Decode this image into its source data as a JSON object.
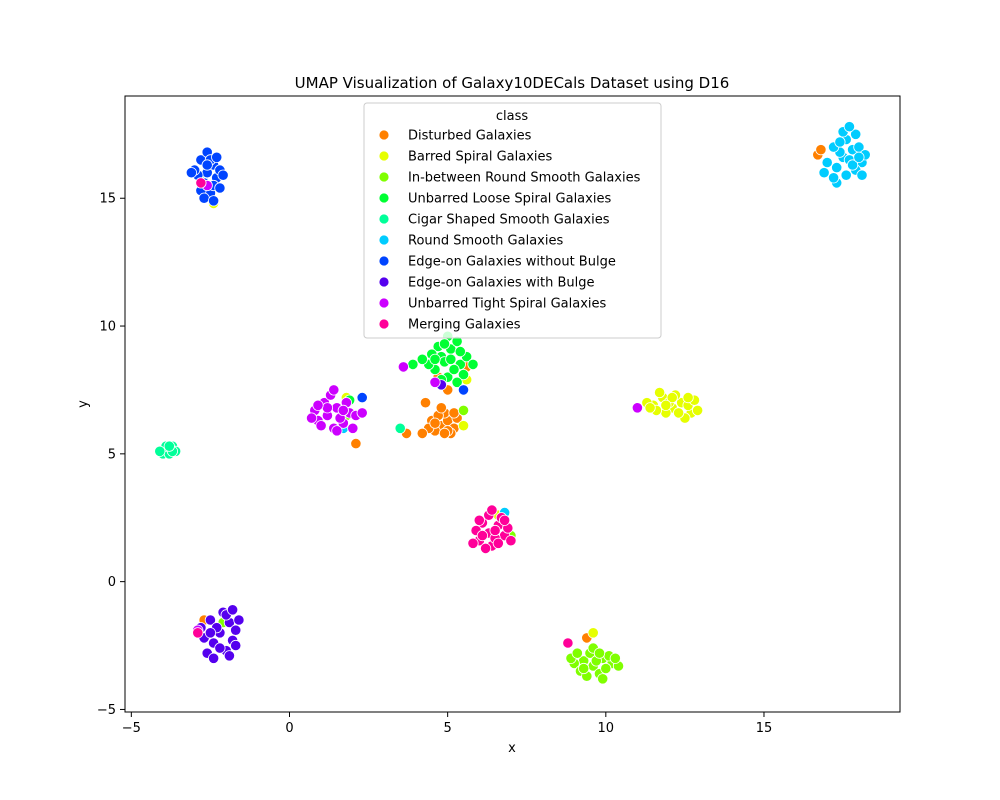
{
  "chart_data": {
    "type": "scatter",
    "title": "UMAP Visualization of Galaxy10DECals Dataset using D16",
    "xlabel": "x",
    "ylabel": "y",
    "xlim": [
      -5.2,
      19.3
    ],
    "ylim": [
      -5.1,
      19.0
    ],
    "xticks": [
      -5,
      0,
      5,
      10,
      15
    ],
    "yticks": [
      -5,
      0,
      5,
      10,
      15
    ],
    "xtick_labels": [
      "−5",
      "0",
      "5",
      "10",
      "15"
    ],
    "ytick_labels": [
      "−5",
      "0",
      "5",
      "10",
      "15"
    ],
    "grid": false,
    "legend": {
      "title": "class",
      "placement": "top-center"
    },
    "series": [
      {
        "name": "Disturbed Galaxies",
        "color": "#ff8000",
        "points": [
          [
            4.8,
            6.1
          ],
          [
            5.0,
            6.3
          ],
          [
            4.6,
            5.9
          ],
          [
            4.9,
            6.6
          ],
          [
            5.2,
            6.0
          ],
          [
            4.5,
            6.3
          ],
          [
            5.1,
            5.8
          ],
          [
            4.7,
            6.5
          ],
          [
            5.3,
            6.4
          ],
          [
            4.4,
            6.0
          ],
          [
            5.0,
            5.9
          ],
          [
            4.8,
            6.8
          ],
          [
            4.9,
            5.8
          ],
          [
            4.6,
            6.2
          ],
          [
            5.2,
            6.6
          ],
          [
            3.7,
            5.8
          ],
          [
            4.2,
            5.8
          ],
          [
            4.3,
            7.0
          ],
          [
            5.0,
            7.5
          ],
          [
            4.7,
            8.0
          ],
          [
            2.1,
            5.4
          ],
          [
            16.7,
            16.7
          ],
          [
            16.8,
            16.9
          ],
          [
            9.4,
            -2.2
          ],
          [
            -2.7,
            -1.5
          ],
          [
            5.6,
            8.4
          ]
        ]
      },
      {
        "name": "Barred Spiral Galaxies",
        "color": "#e6ff00",
        "points": [
          [
            11.5,
            6.9
          ],
          [
            11.8,
            7.2
          ],
          [
            12.1,
            6.8
          ],
          [
            12.4,
            7.0
          ],
          [
            12.7,
            6.6
          ],
          [
            11.3,
            7.0
          ],
          [
            11.9,
            6.6
          ],
          [
            12.2,
            7.3
          ],
          [
            12.6,
            6.9
          ],
          [
            12.9,
            6.7
          ],
          [
            11.6,
            6.7
          ],
          [
            12.0,
            7.0
          ],
          [
            12.5,
            6.4
          ],
          [
            11.7,
            7.4
          ],
          [
            12.3,
            6.6
          ],
          [
            12.8,
            7.1
          ],
          [
            11.4,
            6.8
          ],
          [
            12.1,
            7.2
          ],
          [
            12.6,
            7.2
          ],
          [
            11.9,
            6.9
          ],
          [
            5.6,
            7.9
          ],
          [
            5.5,
            6.1
          ],
          [
            6.6,
            2.6
          ],
          [
            9.6,
            -2.0
          ],
          [
            -2.4,
            14.8
          ],
          [
            1.8,
            7.2
          ]
        ]
      },
      {
        "name": "In-between Round Smooth Galaxies",
        "color": "#80ff00",
        "points": [
          [
            9.3,
            -3.1
          ],
          [
            9.6,
            -3.3
          ],
          [
            9.9,
            -3.0
          ],
          [
            10.2,
            -3.2
          ],
          [
            9.0,
            -3.2
          ],
          [
            9.5,
            -2.8
          ],
          [
            9.8,
            -3.6
          ],
          [
            10.1,
            -2.9
          ],
          [
            9.2,
            -3.5
          ],
          [
            9.7,
            -3.1
          ],
          [
            10.4,
            -3.3
          ],
          [
            8.9,
            -3.0
          ],
          [
            9.4,
            -3.7
          ],
          [
            10.0,
            -3.4
          ],
          [
            9.6,
            -2.6
          ],
          [
            9.1,
            -2.8
          ],
          [
            10.3,
            -3.0
          ],
          [
            9.8,
            -2.8
          ],
          [
            9.3,
            -3.4
          ],
          [
            9.9,
            -3.8
          ],
          [
            7.0,
            1.8
          ],
          [
            5.5,
            6.7
          ],
          [
            1.8,
            6.5
          ],
          [
            -2.1,
            -1.6
          ]
        ]
      },
      {
        "name": "Unbarred Loose Spiral Galaxies",
        "color": "#00ff33",
        "points": [
          [
            4.8,
            8.8
          ],
          [
            5.1,
            9.1
          ],
          [
            5.4,
            8.5
          ],
          [
            4.6,
            8.3
          ],
          [
            5.0,
            8.0
          ],
          [
            5.3,
            9.4
          ],
          [
            4.7,
            9.2
          ],
          [
            5.5,
            8.1
          ],
          [
            4.9,
            8.6
          ],
          [
            5.2,
            8.3
          ],
          [
            4.5,
            8.9
          ],
          [
            5.6,
            8.8
          ],
          [
            5.0,
            9.6
          ],
          [
            4.8,
            7.9
          ],
          [
            5.3,
            7.8
          ],
          [
            4.4,
            8.5
          ],
          [
            5.1,
            8.7
          ],
          [
            4.9,
            9.3
          ],
          [
            5.4,
            9.0
          ],
          [
            4.6,
            8.7
          ],
          [
            3.9,
            8.5
          ],
          [
            4.2,
            8.7
          ],
          [
            5.8,
            8.5
          ],
          [
            -2.7,
            15.9
          ],
          [
            1.9,
            7.1
          ]
        ]
      },
      {
        "name": "Cigar Shaped Smooth Galaxies",
        "color": "#00ff99",
        "points": [
          [
            -3.8,
            5.2
          ],
          [
            -3.9,
            5.1
          ],
          [
            -3.7,
            5.3
          ],
          [
            -4.0,
            5.0
          ],
          [
            -3.6,
            5.1
          ],
          [
            -3.8,
            5.0
          ],
          [
            -3.9,
            5.3
          ],
          [
            -3.7,
            5.1
          ],
          [
            -4.1,
            5.1
          ],
          [
            -3.8,
            5.3
          ],
          [
            3.5,
            6.0
          ]
        ]
      },
      {
        "name": "Round Smooth Galaxies",
        "color": "#00ccff",
        "points": [
          [
            17.5,
            16.6
          ],
          [
            17.8,
            16.9
          ],
          [
            18.1,
            16.4
          ],
          [
            17.3,
            16.2
          ],
          [
            17.6,
            17.3
          ],
          [
            17.9,
            16.1
          ],
          [
            18.0,
            17.0
          ],
          [
            17.4,
            16.8
          ],
          [
            17.7,
            16.5
          ],
          [
            18.2,
            16.7
          ],
          [
            17.2,
            17.0
          ],
          [
            17.6,
            15.9
          ],
          [
            17.9,
            17.5
          ],
          [
            17.3,
            15.6
          ],
          [
            18.1,
            15.9
          ],
          [
            17.5,
            17.6
          ],
          [
            17.0,
            16.4
          ],
          [
            17.8,
            16.3
          ],
          [
            17.4,
            17.2
          ],
          [
            18.0,
            16.6
          ],
          [
            16.9,
            16.0
          ],
          [
            17.2,
            15.8
          ],
          [
            17.7,
            17.8
          ],
          [
            6.8,
            2.7
          ],
          [
            1.7,
            6.0
          ]
        ]
      },
      {
        "name": "Edge-on Galaxies without Bulge",
        "color": "#0044ff",
        "points": [
          [
            -2.6,
            16.0
          ],
          [
            -2.4,
            16.3
          ],
          [
            -2.7,
            15.6
          ],
          [
            -2.3,
            15.8
          ],
          [
            -2.8,
            16.5
          ],
          [
            -2.5,
            15.2
          ],
          [
            -2.2,
            16.1
          ],
          [
            -2.9,
            15.9
          ],
          [
            -2.6,
            16.8
          ],
          [
            -2.4,
            15.5
          ],
          [
            -2.1,
            15.9
          ],
          [
            -2.8,
            15.3
          ],
          [
            -2.5,
            16.5
          ],
          [
            -3.0,
            16.1
          ],
          [
            -2.3,
            16.6
          ],
          [
            -2.7,
            15.0
          ],
          [
            -2.4,
            14.9
          ],
          [
            -2.6,
            16.3
          ],
          [
            -2.2,
            15.4
          ],
          [
            -3.1,
            16.0
          ],
          [
            2.3,
            7.2
          ],
          [
            5.5,
            7.5
          ]
        ]
      },
      {
        "name": "Edge-on Galaxies with Bulge",
        "color": "#5500ee",
        "points": [
          [
            -2.2,
            -2.0
          ],
          [
            -1.9,
            -1.6
          ],
          [
            -2.4,
            -2.4
          ],
          [
            -2.0,
            -2.7
          ],
          [
            -1.7,
            -1.9
          ],
          [
            -2.5,
            -1.5
          ],
          [
            -2.1,
            -1.2
          ],
          [
            -2.6,
            -2.8
          ],
          [
            -1.8,
            -2.3
          ],
          [
            -2.3,
            -1.8
          ],
          [
            -2.0,
            -1.3
          ],
          [
            -2.7,
            -2.2
          ],
          [
            -1.6,
            -1.5
          ],
          [
            -2.4,
            -3.0
          ],
          [
            -1.9,
            -2.9
          ],
          [
            -2.8,
            -1.8
          ],
          [
            -2.2,
            -2.6
          ],
          [
            -1.8,
            -1.1
          ],
          [
            -2.5,
            -2.0
          ],
          [
            -1.7,
            -2.5
          ],
          [
            4.8,
            7.7
          ]
        ]
      },
      {
        "name": "Unbarred Tight Spiral Galaxies",
        "color": "#cc00ff",
        "points": [
          [
            1.2,
            6.5
          ],
          [
            1.5,
            6.8
          ],
          [
            0.9,
            6.3
          ],
          [
            1.7,
            6.2
          ],
          [
            1.1,
            7.0
          ],
          [
            1.4,
            6.0
          ],
          [
            0.8,
            6.7
          ],
          [
            1.9,
            6.6
          ],
          [
            1.3,
            7.3
          ],
          [
            1.6,
            6.4
          ],
          [
            0.7,
            6.4
          ],
          [
            2.0,
            6.0
          ],
          [
            1.0,
            6.1
          ],
          [
            1.8,
            7.0
          ],
          [
            1.2,
            6.8
          ],
          [
            1.5,
            5.9
          ],
          [
            0.9,
            6.9
          ],
          [
            1.7,
            6.7
          ],
          [
            2.1,
            6.5
          ],
          [
            1.4,
            7.5
          ],
          [
            2.3,
            6.6
          ],
          [
            4.6,
            7.8
          ],
          [
            3.6,
            8.4
          ],
          [
            11.0,
            6.8
          ],
          [
            -2.6,
            15.5
          ],
          [
            -2.9,
            -1.9
          ]
        ]
      },
      {
        "name": "Merging Galaxies",
        "color": "#ff0099",
        "points": [
          [
            6.3,
            1.9
          ],
          [
            6.6,
            2.2
          ],
          [
            6.0,
            1.6
          ],
          [
            6.8,
            1.8
          ],
          [
            6.4,
            1.4
          ],
          [
            6.1,
            2.3
          ],
          [
            6.7,
            2.5
          ],
          [
            5.9,
            2.0
          ],
          [
            6.5,
            1.7
          ],
          [
            6.9,
            2.1
          ],
          [
            6.2,
            1.3
          ],
          [
            6.6,
            1.5
          ],
          [
            6.0,
            2.4
          ],
          [
            6.8,
            2.4
          ],
          [
            6.3,
            2.6
          ],
          [
            5.8,
            1.5
          ],
          [
            6.5,
            2.0
          ],
          [
            7.0,
            1.6
          ],
          [
            6.4,
            2.8
          ],
          [
            6.1,
            1.8
          ],
          [
            8.8,
            -2.4
          ],
          [
            -2.9,
            -2.0
          ],
          [
            -2.8,
            15.6
          ]
        ]
      }
    ]
  }
}
